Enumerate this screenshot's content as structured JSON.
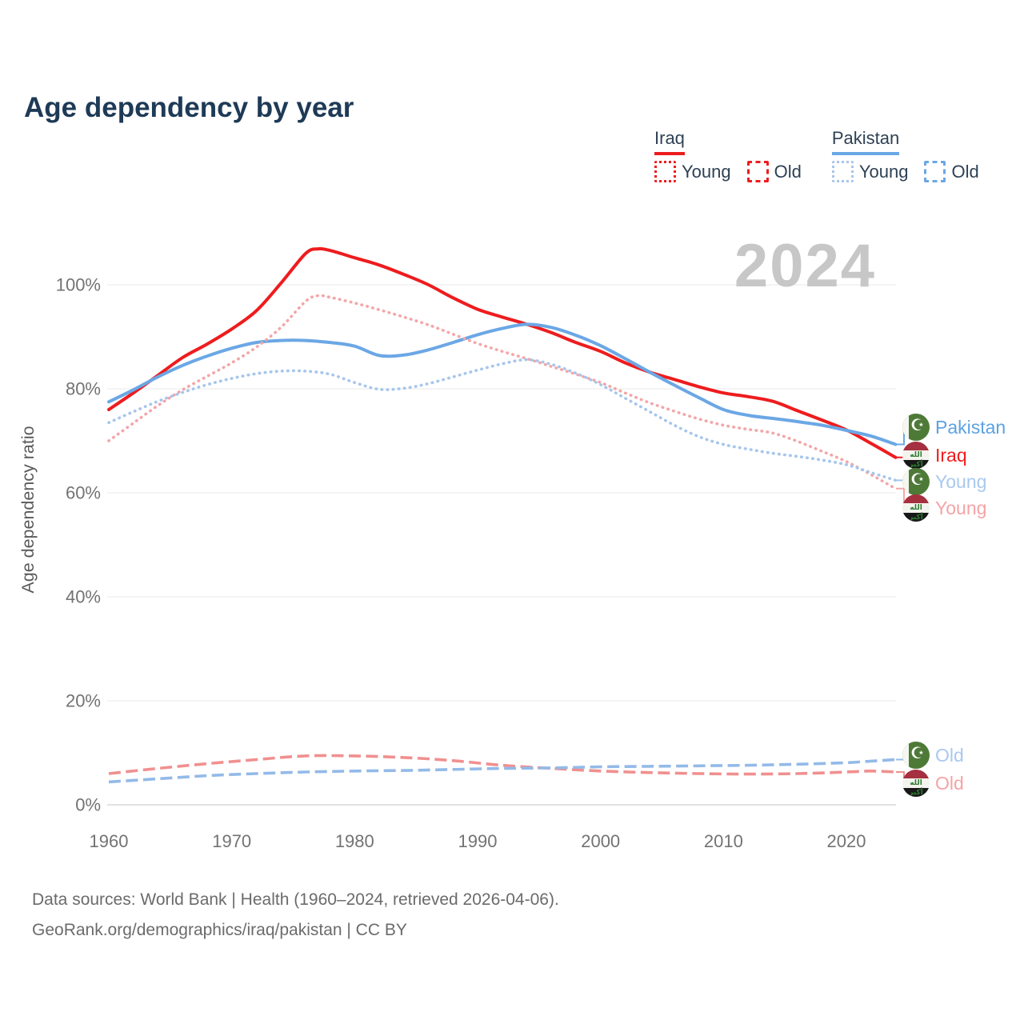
{
  "title": "Age dependency by year",
  "watermark": "2024",
  "y_axis_title": "Age dependency ratio",
  "legend": {
    "groups": [
      {
        "name": "Iraq",
        "underline_color": "#ee1c1e",
        "items": [
          {
            "label": "Young",
            "style": "dotted",
            "swatch_color": "#ee1c1e"
          },
          {
            "label": "Old",
            "style": "dashed",
            "swatch_color": "#ee1c1e"
          }
        ]
      },
      {
        "name": "Pakistan",
        "underline_color": "#6ba7e5",
        "items": [
          {
            "label": "Young",
            "style": "dotted",
            "swatch_color": "#a6c6ec"
          },
          {
            "label": "Old",
            "style": "dashed",
            "swatch_color": "#6ba7e5"
          }
        ]
      }
    ]
  },
  "end_labels": [
    {
      "text": "Pakistan",
      "flag": "pakistan",
      "color": "#5da2e2"
    },
    {
      "text": "Iraq",
      "flag": "iraq",
      "color": "#ee1c1e"
    },
    {
      "text": "Young",
      "flag": "pakistan",
      "color": "#a9c9ef"
    },
    {
      "text": "Young",
      "flag": "iraq",
      "color": "#f5a3a5"
    },
    {
      "text": "Old",
      "flag": "pakistan",
      "color": "#a9c9ef"
    },
    {
      "text": "Old",
      "flag": "iraq",
      "color": "#f5a3a5"
    }
  ],
  "footer": {
    "line1": "Data sources: World Bank | Health (1960–2024, retrieved 2026-04-06).",
    "line2": "GeoRank.org/demographics/iraq/pakistan | CC BY"
  },
  "chart_data": {
    "type": "line",
    "title": "Age dependency by year",
    "xlabel": "",
    "ylabel": "Age dependency ratio",
    "x_range": [
      1960,
      2024
    ],
    "ylim": [
      0,
      110
    ],
    "unit": "%",
    "grid": true,
    "legend_position": "top-right",
    "x_ticks": [
      1960,
      1970,
      1980,
      1990,
      2000,
      2010,
      2020
    ],
    "y_ticks": [
      {
        "value": 0,
        "label": "0%"
      },
      {
        "value": 20,
        "label": "20%"
      },
      {
        "value": 40,
        "label": "40%"
      },
      {
        "value": 60,
        "label": "60%"
      },
      {
        "value": 80,
        "label": "80%"
      },
      {
        "value": 100,
        "label": "100%"
      }
    ],
    "series": [
      {
        "id": "iraq-total",
        "name": "Iraq",
        "measure": "total",
        "style": "solid",
        "color": "#ee1c1e",
        "points": [
          [
            1960,
            76
          ],
          [
            1962,
            79.2
          ],
          [
            1964,
            82.6
          ],
          [
            1966,
            86
          ],
          [
            1968,
            88.6
          ],
          [
            1970,
            91.5
          ],
          [
            1972,
            95
          ],
          [
            1974,
            100.3
          ],
          [
            1976,
            106
          ],
          [
            1977,
            106.9
          ],
          [
            1978,
            106.6
          ],
          [
            1980,
            105.2
          ],
          [
            1982,
            103.8
          ],
          [
            1984,
            102
          ],
          [
            1986,
            100
          ],
          [
            1988,
            97.5
          ],
          [
            1990,
            95.3
          ],
          [
            1992,
            93.8
          ],
          [
            1994,
            92.4
          ],
          [
            1996,
            90.8
          ],
          [
            1998,
            88.9
          ],
          [
            2000,
            87.2
          ],
          [
            2002,
            85
          ],
          [
            2004,
            83.2
          ],
          [
            2006,
            81.8
          ],
          [
            2008,
            80.4
          ],
          [
            2010,
            79.2
          ],
          [
            2012,
            78.5
          ],
          [
            2014,
            77.6
          ],
          [
            2016,
            75.8
          ],
          [
            2018,
            74
          ],
          [
            2020,
            72.1
          ],
          [
            2022,
            69.5
          ],
          [
            2024,
            66.8
          ]
        ]
      },
      {
        "id": "pakistan-total",
        "name": "Pakistan",
        "measure": "total",
        "style": "solid",
        "color": "#6ba7e5",
        "points": [
          [
            1960,
            77.5
          ],
          [
            1962,
            79.8
          ],
          [
            1964,
            82.3
          ],
          [
            1966,
            84.5
          ],
          [
            1968,
            86.3
          ],
          [
            1970,
            87.8
          ],
          [
            1972,
            88.9
          ],
          [
            1974,
            89.3
          ],
          [
            1976,
            89.3
          ],
          [
            1978,
            88.9
          ],
          [
            1980,
            88.2
          ],
          [
            1982,
            86.4
          ],
          [
            1984,
            86.5
          ],
          [
            1986,
            87.5
          ],
          [
            1988,
            88.9
          ],
          [
            1990,
            90.4
          ],
          [
            1992,
            91.6
          ],
          [
            1994,
            92.4
          ],
          [
            1996,
            91.8
          ],
          [
            1998,
            90.3
          ],
          [
            2000,
            88.3
          ],
          [
            2002,
            85.8
          ],
          [
            2004,
            83.2
          ],
          [
            2006,
            80.7
          ],
          [
            2008,
            78.3
          ],
          [
            2010,
            76
          ],
          [
            2012,
            74.9
          ],
          [
            2014,
            74.3
          ],
          [
            2016,
            73.7
          ],
          [
            2018,
            73
          ],
          [
            2020,
            72
          ],
          [
            2022,
            70.9
          ],
          [
            2024,
            69.3
          ]
        ]
      },
      {
        "id": "iraq-young",
        "name": "Iraq Young",
        "measure": "young",
        "style": "dotted",
        "color": "#f3a6a8",
        "points": [
          [
            1960,
            70
          ],
          [
            1962,
            73.4
          ],
          [
            1964,
            76.8
          ],
          [
            1966,
            79.8
          ],
          [
            1968,
            82.4
          ],
          [
            1970,
            85
          ],
          [
            1972,
            88
          ],
          [
            1974,
            91.8
          ],
          [
            1976,
            96.8
          ],
          [
            1977,
            97.9
          ],
          [
            1978,
            97.6
          ],
          [
            1980,
            96.5
          ],
          [
            1982,
            95.2
          ],
          [
            1984,
            93.8
          ],
          [
            1986,
            92.3
          ],
          [
            1988,
            90.5
          ],
          [
            1990,
            88.7
          ],
          [
            1992,
            87.2
          ],
          [
            1994,
            85.8
          ],
          [
            1996,
            84.3
          ],
          [
            1998,
            82.8
          ],
          [
            2000,
            81.2
          ],
          [
            2002,
            79.2
          ],
          [
            2004,
            77.3
          ],
          [
            2006,
            75.7
          ],
          [
            2008,
            74.2
          ],
          [
            2010,
            73
          ],
          [
            2012,
            72.2
          ],
          [
            2014,
            71.5
          ],
          [
            2016,
            69.9
          ],
          [
            2018,
            68
          ],
          [
            2020,
            66
          ],
          [
            2022,
            63.5
          ],
          [
            2024,
            60.8
          ]
        ]
      },
      {
        "id": "pakistan-young",
        "name": "Pakistan Young",
        "measure": "young",
        "style": "dotted",
        "color": "#a6c6ec",
        "points": [
          [
            1960,
            73.5
          ],
          [
            1962,
            75.6
          ],
          [
            1964,
            77.6
          ],
          [
            1966,
            79.3
          ],
          [
            1968,
            80.8
          ],
          [
            1970,
            82
          ],
          [
            1972,
            82.9
          ],
          [
            1974,
            83.4
          ],
          [
            1976,
            83.4
          ],
          [
            1978,
            82.8
          ],
          [
            1980,
            81.2
          ],
          [
            1982,
            79.9
          ],
          [
            1984,
            80.1
          ],
          [
            1986,
            81
          ],
          [
            1988,
            82.3
          ],
          [
            1990,
            83.6
          ],
          [
            1992,
            84.8
          ],
          [
            1994,
            85.6
          ],
          [
            1996,
            84.7
          ],
          [
            1998,
            83
          ],
          [
            2000,
            80.8
          ],
          [
            2002,
            78.2
          ],
          [
            2004,
            75.6
          ],
          [
            2006,
            73
          ],
          [
            2008,
            70.8
          ],
          [
            2010,
            69.3
          ],
          [
            2012,
            68.4
          ],
          [
            2014,
            67.6
          ],
          [
            2016,
            67
          ],
          [
            2018,
            66.3
          ],
          [
            2020,
            65.4
          ],
          [
            2022,
            63.9
          ],
          [
            2024,
            62.4
          ]
        ]
      },
      {
        "id": "iraq-old",
        "name": "Iraq Old",
        "measure": "old",
        "style": "dashed",
        "color": "#f0908f",
        "points": [
          [
            1960,
            6
          ],
          [
            1964,
            7
          ],
          [
            1968,
            7.9
          ],
          [
            1972,
            8.7
          ],
          [
            1976,
            9.4
          ],
          [
            1980,
            9.4
          ],
          [
            1984,
            9.1
          ],
          [
            1988,
            8.5
          ],
          [
            1992,
            7.6
          ],
          [
            1996,
            7
          ],
          [
            2000,
            6.5
          ],
          [
            2004,
            6.2
          ],
          [
            2008,
            6
          ],
          [
            2012,
            5.9
          ],
          [
            2016,
            6
          ],
          [
            2020,
            6.3
          ],
          [
            2022,
            6.5
          ],
          [
            2024,
            6.3
          ]
        ]
      },
      {
        "id": "pakistan-old",
        "name": "Pakistan Old",
        "measure": "old",
        "style": "dashed",
        "color": "#93bae8",
        "points": [
          [
            1960,
            4.4
          ],
          [
            1964,
            5
          ],
          [
            1968,
            5.6
          ],
          [
            1972,
            6
          ],
          [
            1976,
            6.3
          ],
          [
            1980,
            6.5
          ],
          [
            1984,
            6.6
          ],
          [
            1988,
            6.8
          ],
          [
            1992,
            7
          ],
          [
            1996,
            7.1
          ],
          [
            2000,
            7.3
          ],
          [
            2004,
            7.4
          ],
          [
            2008,
            7.5
          ],
          [
            2012,
            7.6
          ],
          [
            2016,
            7.8
          ],
          [
            2020,
            8.1
          ],
          [
            2022,
            8.4
          ],
          [
            2024,
            8.7
          ]
        ]
      }
    ]
  }
}
